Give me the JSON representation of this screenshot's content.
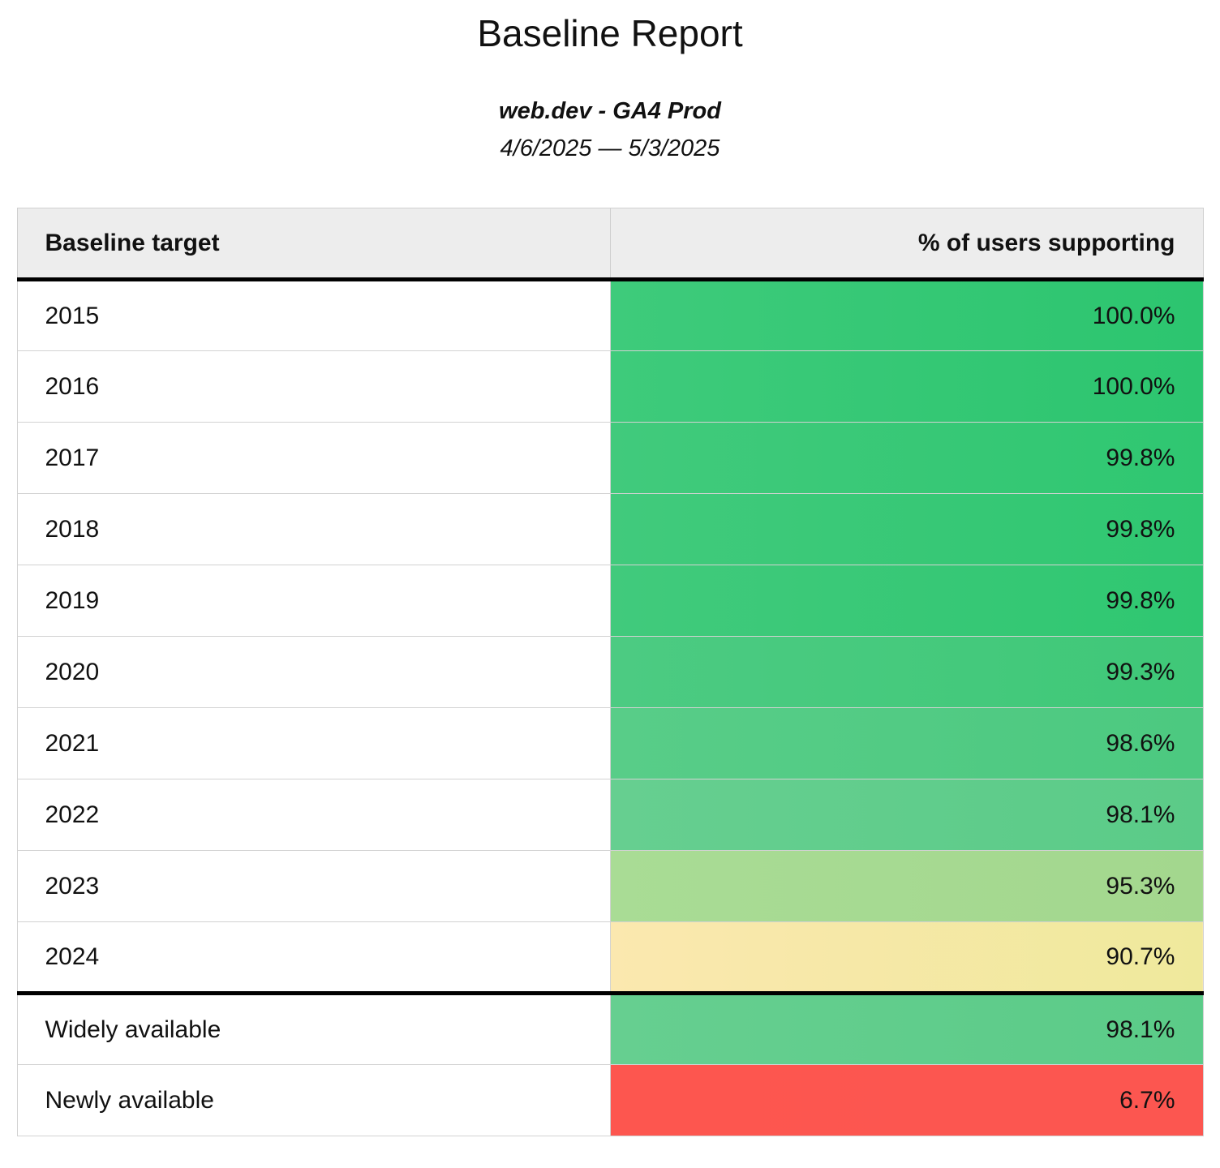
{
  "page": {
    "title": "Baseline Report",
    "subtitle": "web.dev - GA4 Prod",
    "date_range": "4/6/2025 — 5/3/2025"
  },
  "table": {
    "columns": [
      {
        "label": "Baseline target"
      },
      {
        "label": "% of users supporting"
      }
    ],
    "rows": [
      {
        "target": "2015",
        "value": "100.0%",
        "color_left": "#3ecb7b",
        "color_right": "#2cc56f",
        "section_start": false
      },
      {
        "target": "2016",
        "value": "100.0%",
        "color_left": "#3ecb7b",
        "color_right": "#2cc56f",
        "section_start": false
      },
      {
        "target": "2017",
        "value": "99.8%",
        "color_left": "#41ca7c",
        "color_right": "#2fc771",
        "section_start": false
      },
      {
        "target": "2018",
        "value": "99.8%",
        "color_left": "#41ca7c",
        "color_right": "#2fc771",
        "section_start": false
      },
      {
        "target": "2019",
        "value": "99.8%",
        "color_left": "#41ca7c",
        "color_right": "#2fc771",
        "section_start": false
      },
      {
        "target": "2020",
        "value": "99.3%",
        "color_left": "#4ccb82",
        "color_right": "#3fc878",
        "section_start": false
      },
      {
        "target": "2021",
        "value": "98.6%",
        "color_left": "#58cd88",
        "color_right": "#4cc980",
        "section_start": false
      },
      {
        "target": "2022",
        "value": "98.1%",
        "color_left": "#66cf90",
        "color_right": "#5bcb88",
        "section_start": false
      },
      {
        "target": "2023",
        "value": "95.3%",
        "color_left": "#a9dc95",
        "color_right": "#a3d78e",
        "section_start": false
      },
      {
        "target": "2024",
        "value": "90.7%",
        "color_left": "#fbe8af",
        "color_right": "#efe99c",
        "section_start": false
      },
      {
        "target": "Widely available",
        "value": "98.1%",
        "color_left": "#66cf90",
        "color_right": "#5bcb88",
        "section_start": true
      },
      {
        "target": "Newly available",
        "value": "6.7%",
        "color_left": "#fd564f",
        "color_right": "#fc5650",
        "section_start": false
      }
    ]
  },
  "chart_data": {
    "type": "table",
    "title": "Baseline Report",
    "subtitle": "web.dev - GA4 Prod",
    "date_range": "4/6/2025 — 5/3/2025",
    "columns": [
      "Baseline target",
      "% of users supporting"
    ],
    "categories": [
      "2015",
      "2016",
      "2017",
      "2018",
      "2019",
      "2020",
      "2021",
      "2022",
      "2023",
      "2024",
      "Widely available",
      "Newly available"
    ],
    "values": [
      100.0,
      100.0,
      99.8,
      99.8,
      99.8,
      99.3,
      98.6,
      98.1,
      95.3,
      90.7,
      98.1,
      6.7
    ],
    "value_format": "percent",
    "layout_hints": {
      "value_column_conditional_fill": true,
      "color_scale": {
        "high": "#2cc56f",
        "mid": "#efe99c",
        "low": "#fc5650"
      },
      "section_break_after_row": "2024",
      "header_background": "#ededed"
    }
  }
}
